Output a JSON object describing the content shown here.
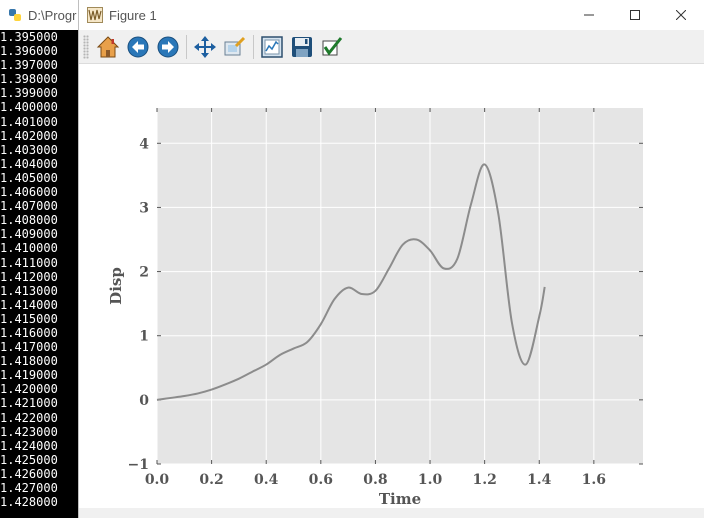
{
  "console": {
    "title": "D:\\Progr",
    "lines": [
      "1.395000",
      "1.396000",
      "1.397000",
      "1.398000",
      "1.399000",
      "1.400000",
      "1.401000",
      "1.402000",
      "1.403000",
      "1.404000",
      "1.405000",
      "1.406000",
      "1.407000",
      "1.408000",
      "1.409000",
      "1.410000",
      "1.411000",
      "1.412000",
      "1.413000",
      "1.414000",
      "1.415000",
      "1.416000",
      "1.417000",
      "1.418000",
      "1.419000",
      "1.420000",
      "1.421000",
      "1.422000",
      "1.423000",
      "1.424000",
      "1.425000",
      "1.426000",
      "1.427000",
      "1.428000"
    ]
  },
  "window": {
    "title": "Figure 1"
  },
  "toolbar": {
    "buttons": [
      {
        "name": "home-button",
        "icon": "home-icon"
      },
      {
        "name": "back-button",
        "icon": "back-arrow-icon"
      },
      {
        "name": "forward-button",
        "icon": "forward-arrow-icon"
      },
      {
        "name": "pan-button",
        "icon": "move-icon"
      },
      {
        "name": "zoom-button",
        "icon": "zoom-rect-icon"
      },
      {
        "name": "configure-subplots-button",
        "icon": "subplots-icon"
      },
      {
        "name": "save-button",
        "icon": "floppy-icon"
      },
      {
        "name": "edit-axis-button",
        "icon": "checkmark-icon"
      }
    ]
  },
  "chart_data": {
    "type": "line",
    "xlabel": "Time",
    "ylabel": "Disp",
    "xlim": [
      0.0,
      1.78
    ],
    "ylim": [
      -1.0,
      4.55
    ],
    "xticks": [
      "0.0",
      "0.2",
      "0.4",
      "0.6",
      "0.8",
      "1.0",
      "1.2",
      "1.4",
      "1.6"
    ],
    "xtick_values": [
      0.0,
      0.2,
      0.4,
      0.6,
      0.8,
      1.0,
      1.2,
      1.4,
      1.6
    ],
    "yticks": [
      "−1",
      "0",
      "1",
      "2",
      "3",
      "4"
    ],
    "ytick_values": [
      -1,
      0,
      1,
      2,
      3,
      4
    ],
    "grid": true,
    "background": "#e5e5e5",
    "series": [
      {
        "color": "#8c8c8c",
        "x": [
          0.0,
          0.05,
          0.1,
          0.15,
          0.2,
          0.25,
          0.3,
          0.35,
          0.4,
          0.45,
          0.5,
          0.55,
          0.6,
          0.65,
          0.7,
          0.75,
          0.8,
          0.85,
          0.9,
          0.95,
          1.0,
          1.05,
          1.1,
          1.15,
          1.2,
          1.25,
          1.3,
          1.35,
          1.4,
          1.42
        ],
        "y": [
          0.0,
          0.03,
          0.06,
          0.1,
          0.16,
          0.24,
          0.33,
          0.44,
          0.55,
          0.7,
          0.8,
          0.9,
          1.18,
          1.57,
          1.75,
          1.65,
          1.7,
          2.05,
          2.42,
          2.5,
          2.33,
          2.05,
          2.2,
          3.05,
          3.67,
          2.9,
          1.2,
          0.55,
          1.3,
          1.76
        ]
      }
    ]
  }
}
